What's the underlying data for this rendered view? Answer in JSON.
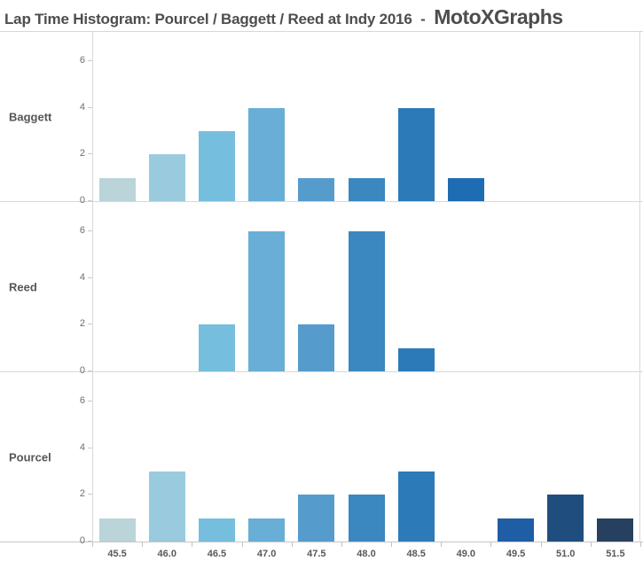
{
  "page": {
    "title": "Lap Time Histogram: Pourcel / Baggett / Reed at Indy 2016",
    "title_separator": "  -  ",
    "brand": "MotoXGraphs"
  },
  "chart_data": {
    "type": "bar",
    "subtype": "histogram-small-multiples",
    "title": "Lap Time Histogram: Pourcel / Baggett / Reed at Indy 2016 - MotoXGraphs",
    "xlabel": "",
    "ylabel": "",
    "grid": false,
    "legend": "none",
    "categories": [
      "45.5",
      "46.0",
      "46.5",
      "47.0",
      "47.5",
      "48.0",
      "48.5",
      "49.0",
      "49.5",
      "51.0",
      "51.5"
    ],
    "yticks": [
      0,
      2,
      4,
      6
    ],
    "ylim": [
      0,
      7.3
    ],
    "panel_order_top_to_bottom": [
      "Baggett",
      "Reed",
      "Pourcel"
    ],
    "series": [
      {
        "name": "Baggett",
        "values": [
          1,
          2,
          3,
          4,
          1,
          1,
          4,
          1,
          0,
          0,
          0
        ]
      },
      {
        "name": "Reed",
        "values": [
          0,
          0,
          2,
          6,
          2,
          6,
          1,
          0,
          0,
          0,
          0
        ]
      },
      {
        "name": "Pourcel",
        "values": [
          1,
          3,
          1,
          1,
          2,
          2,
          3,
          0,
          1,
          2,
          1
        ]
      }
    ],
    "bin_colors": [
      "#bad4d9",
      "#9acade",
      "#76bedd",
      "#68aed6",
      "#559ccd",
      "#3b87bf",
      "#2c7bb8",
      "#1e6cb1",
      "#1f5da5",
      "#1f4e7e",
      "#27405f"
    ]
  },
  "colors": {
    "title_text": "#4d4d4d",
    "row_label_text": "#565656",
    "x_label_text": "#595959",
    "y_tick_text": "#6e6e6e",
    "panel_line": "#d8d8d8",
    "axis_line": "#c6c6c6",
    "background": "#ffffff"
  }
}
